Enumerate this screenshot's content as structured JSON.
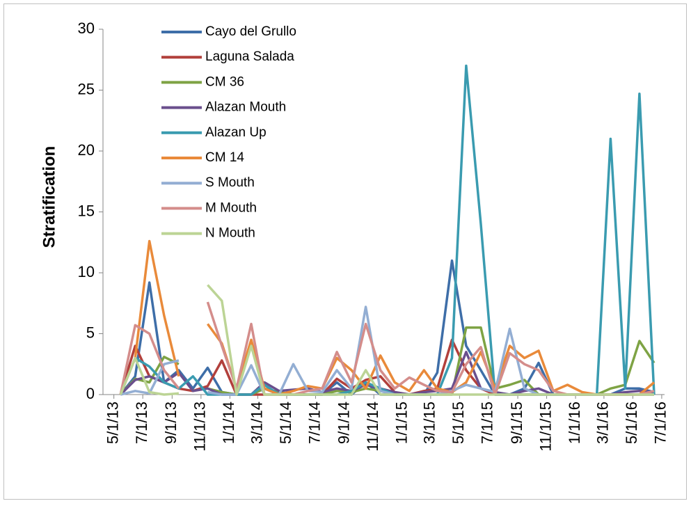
{
  "chart_data": {
    "type": "line",
    "y_label": "Stratification",
    "x": [
      "5/15/13",
      "6/15/13",
      "7/15/13",
      "8/15/13",
      "9/15/13",
      "10/15/13",
      "11/15/13",
      "12/15/13",
      "1/15/14",
      "2/15/14",
      "3/15/14",
      "4/15/14",
      "5/15/14",
      "6/15/14",
      "7/15/14",
      "8/15/14",
      "9/15/14",
      "10/15/14",
      "11/15/14",
      "12/15/14",
      "1/15/15",
      "2/15/15",
      "3/15/15",
      "4/15/15",
      "5/15/15",
      "6/15/15",
      "7/15/15",
      "8/15/15",
      "9/15/15",
      "10/15/15",
      "11/15/15",
      "12/15/15",
      "1/15/16",
      "2/15/16",
      "3/15/16",
      "4/15/16",
      "5/15/16",
      "6/15/16"
    ],
    "xlim": [
      "4/8/13",
      "7/7/16"
    ],
    "xticks": [
      "5/1/13",
      "7/1/13",
      "9/1/13",
      "11/1/13",
      "1/1/14",
      "3/1/14",
      "5/1/14",
      "7/1/14",
      "9/1/14",
      "11/1/14",
      "1/1/15",
      "3/1/15",
      "5/1/15",
      "7/1/15",
      "9/1/15",
      "11/1/15",
      "1/1/16",
      "3/1/16",
      "5/1/16",
      "7/1/16"
    ],
    "ylim": [
      0,
      30
    ],
    "yticks": [
      0,
      5,
      10,
      15,
      20,
      25,
      30
    ],
    "grid": false,
    "legend": "upper left",
    "series": [
      {
        "name": "Cayo del Grullo",
        "color": "#3e6ea8",
        "values": [
          0,
          1.5,
          9.2,
          1,
          2,
          0.5,
          2.2,
          0.2,
          0,
          0,
          0.5,
          0,
          0,
          0,
          0,
          1,
          0,
          1,
          0,
          0,
          0,
          0,
          1.8,
          11,
          4,
          2,
          0,
          0,
          0.5,
          2.6,
          0,
          0,
          0,
          0,
          0,
          0.5,
          0.5,
          0.2
        ]
      },
      {
        "name": "Laguna Salada",
        "color": "#b2403c",
        "values": [
          0,
          4,
          1.5,
          1,
          0.5,
          0.3,
          0.7,
          2.8,
          0,
          0,
          0,
          0,
          0,
          0,
          0,
          1.3,
          0.5,
          1.2,
          1.5,
          0.2,
          0,
          0.3,
          0.5,
          4.5,
          2,
          0.5,
          0,
          0,
          0,
          0,
          0,
          0,
          0,
          0,
          0,
          0,
          0,
          0
        ]
      },
      {
        "name": "CM 36",
        "color": "#7ea344",
        "values": [
          0,
          1.3,
          1,
          3.1,
          2.5,
          null,
          0.5,
          0.2,
          0,
          0,
          0.5,
          0.2,
          0,
          0,
          0,
          0.3,
          0.2,
          0.5,
          0.3,
          0,
          0,
          0,
          0,
          0,
          5.5,
          5.5,
          0.5,
          0.8,
          1.2,
          0,
          0,
          0,
          0,
          0,
          0.5,
          0.8,
          4.4,
          2.6
        ]
      },
      {
        "name": "Alazan Mouth",
        "color": "#6a4f8d",
        "values": [
          0,
          1.2,
          1.5,
          1,
          1.8,
          0.3,
          0.5,
          0,
          0,
          0,
          1,
          0.3,
          0.4,
          0.5,
          0.2,
          0.5,
          0.3,
          0.8,
          0.5,
          0.2,
          0,
          0.2,
          0.3,
          0.5,
          3.5,
          0.5,
          0.2,
          0,
          0.3,
          0.5,
          0,
          0,
          0,
          0,
          0,
          0.2,
          0.3,
          0.2
        ]
      },
      {
        "name": "Alazan Up",
        "color": "#3a9bb0",
        "values": [
          0,
          3,
          2.3,
          1,
          0.5,
          1.5,
          0,
          0,
          0,
          0,
          0.8,
          0,
          0,
          0,
          0,
          0,
          0.3,
          1,
          0.5,
          0,
          0,
          0,
          0,
          3,
          27,
          14,
          0,
          0,
          0,
          0,
          0,
          0,
          0,
          0,
          21,
          0.5,
          24.7,
          0
        ]
      },
      {
        "name": "CM 14",
        "color": "#e98a3a",
        "values": [
          0,
          3,
          12.6,
          6.5,
          1.5,
          null,
          5.8,
          4.2,
          0.5,
          4.5,
          0.5,
          0,
          0.3,
          0.7,
          0.5,
          3,
          2,
          0.5,
          3.2,
          1,
          0.3,
          2,
          0.5,
          0.2,
          1,
          3.5,
          0.5,
          4,
          3,
          3.6,
          0.3,
          0.8,
          0.2,
          0,
          0,
          0,
          0,
          1
        ]
      },
      {
        "name": "S Mouth",
        "color": "#93aed3",
        "values": [
          0,
          0.3,
          0.1,
          2.5,
          2.8,
          null,
          0.2,
          0,
          0,
          2.4,
          0,
          0,
          2.5,
          0.3,
          0.2,
          2,
          0.5,
          7.2,
          0.3,
          0,
          0,
          0,
          0,
          0.3,
          0.8,
          0.5,
          0.2,
          5.4,
          0.5,
          0,
          0,
          0,
          0,
          0,
          0,
          0,
          0,
          0
        ]
      },
      {
        "name": "M Mouth",
        "color": "#d48d8b",
        "values": [
          0,
          5.7,
          5,
          2,
          0.5,
          null,
          7.6,
          4,
          0.5,
          5.8,
          0,
          0,
          0,
          0.3,
          0.5,
          3.5,
          1,
          5.8,
          2,
          0.5,
          1.4,
          0.8,
          0.3,
          0.2,
          2.5,
          3.9,
          0,
          3.4,
          2.5,
          2,
          0.3,
          0,
          0,
          0,
          0,
          0,
          0,
          0.3
        ]
      },
      {
        "name": "N Mouth",
        "color": "#bcd495",
        "values": [
          0,
          3,
          0.2,
          0,
          0.1,
          null,
          9,
          7.7,
          0,
          4,
          0,
          0,
          0,
          0,
          0,
          0,
          0,
          2,
          0,
          0,
          0,
          0,
          0,
          0,
          0,
          0,
          0,
          0,
          0,
          0,
          0,
          0,
          0,
          0,
          0,
          0,
          0,
          0
        ]
      }
    ]
  }
}
